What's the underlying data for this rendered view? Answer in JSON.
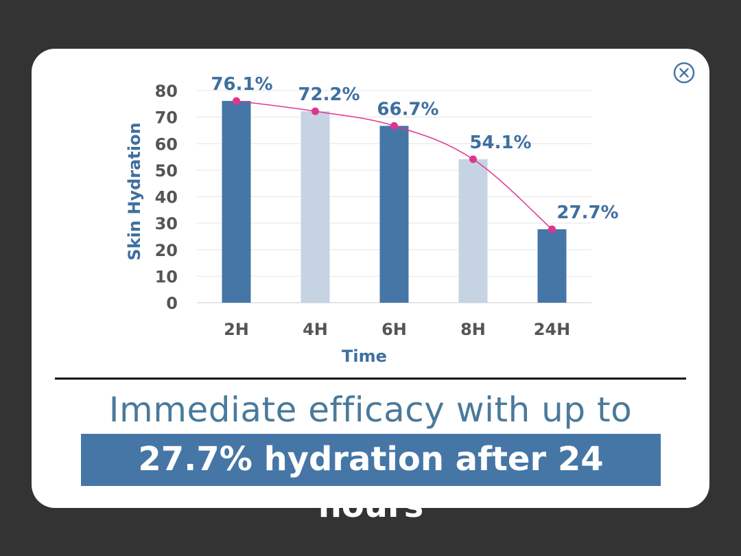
{
  "chart_data": {
    "type": "bar",
    "categories": [
      "2H",
      "4H",
      "6H",
      "8H",
      "24H"
    ],
    "values": [
      76.1,
      72.2,
      66.7,
      54.1,
      27.7
    ],
    "data_labels": [
      "76.1%",
      "72.2%",
      "66.7%",
      "54.1%",
      "27.7%"
    ],
    "bar_colors": [
      "#4576a6",
      "#c5d3e3",
      "#4576a6",
      "#c5d3e3",
      "#4576a6"
    ],
    "line_overlay": {
      "values": [
        76.1,
        72.2,
        66.7,
        54.1,
        27.7
      ],
      "color": "#e0358e"
    },
    "xlabel": "Time",
    "ylabel": "Skin Hydration",
    "ylim": [
      0,
      80
    ],
    "yticks": [
      "0",
      "10",
      "20",
      "30",
      "40",
      "50",
      "60",
      "70",
      "80"
    ],
    "grid": true,
    "legend": "none"
  },
  "caption": {
    "line1": "Immediate efficacy with up to",
    "line2": "27.7% hydration after 24 hours"
  },
  "colors": {
    "background": "#333333",
    "panel": "#ffffff",
    "accent": "#4576a6",
    "label_text": "#3f6f9f",
    "tick_text": "#555555"
  },
  "icons": {
    "close": "close-circle-icon"
  }
}
